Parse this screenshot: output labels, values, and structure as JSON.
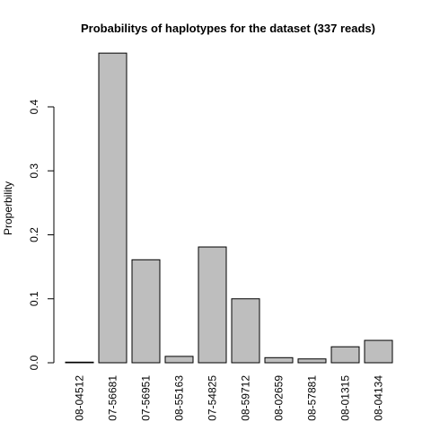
{
  "chart_data": {
    "type": "bar",
    "title": "Probabilitys of haplotypes for the dataset (337 reads)",
    "ylabel": "Properbility",
    "categories": [
      "08-04512",
      "07-56681",
      "07-56951",
      "08-55163",
      "07-54825",
      "08-59712",
      "08-02659",
      "08-57881",
      "08-01315",
      "08-04134"
    ],
    "values": [
      0.001,
      0.484,
      0.161,
      0.01,
      0.181,
      0.1,
      0.008,
      0.006,
      0.025,
      0.035
    ],
    "color": "#bebebe",
    "ylim": [
      0,
      0.5
    ],
    "yticks": [
      {
        "value": 0,
        "label": "0.0"
      },
      0.1,
      0.2,
      0.3,
      0.4
    ],
    "grid": false
  }
}
